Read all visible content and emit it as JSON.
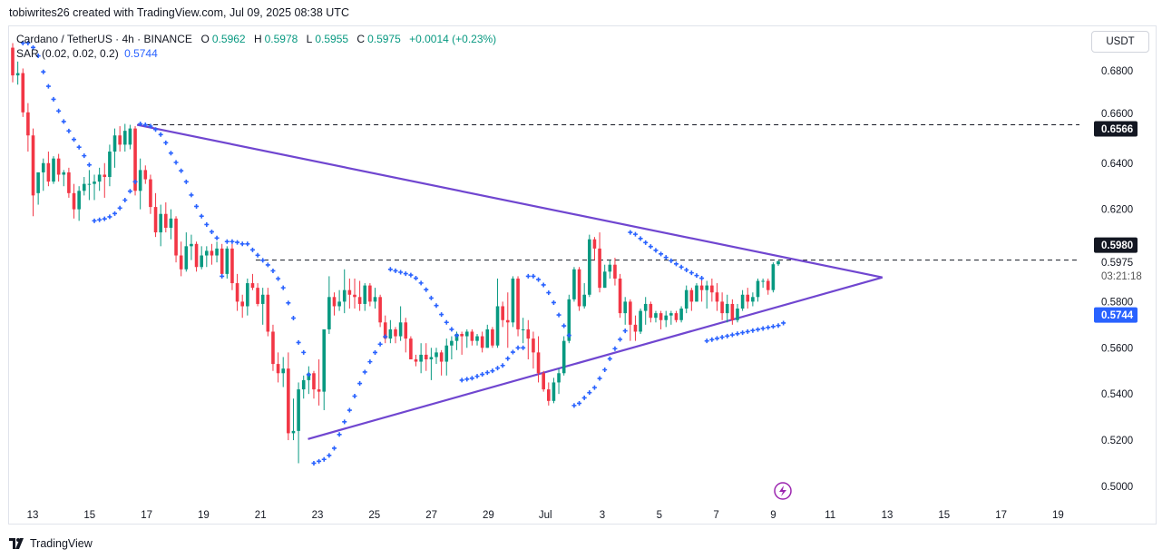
{
  "credit": "tobiwrites26 created with TradingView.com, Jul 09, 2025 08:38 UTC",
  "legend": {
    "symbol": "Cardano / TetherUS · 4h · BINANCE",
    "o_label": "O",
    "o": "0.5962",
    "h_label": "H",
    "h": "0.5978",
    "l_label": "L",
    "l": "0.5955",
    "c_label": "C",
    "c": "0.5975",
    "change": "+0.0014 (+0.23%)",
    "indicator": "SAR (0.02, 0.02, 0.2)",
    "indicator_value": "0.5744"
  },
  "currency_button": "USDT",
  "footer_logo": "TradingView",
  "colors": {
    "up": "#089981",
    "down": "#F23645",
    "sar": "#2962FF",
    "trendline": "#7046D0",
    "price_label_bg": "#131722",
    "sar_label_bg": "#2962FF",
    "alert_icon": "#9C27B0"
  },
  "icons": {
    "alert": "lightning-icon",
    "logo": "tradingview-logo-icon"
  },
  "chart_data": {
    "type": "candlestick",
    "title": "Cardano / TetherUS · 4h · BINANCE",
    "ylim": [
      0.493,
      0.695
    ],
    "grid": false,
    "x_ticks": [
      "13",
      "15",
      "17",
      "19",
      "21",
      "23",
      "25",
      "27",
      "29",
      "Jul",
      "3",
      "5",
      "7",
      "9",
      "11",
      "13",
      "15",
      "17",
      "19"
    ],
    "y_ticks": [
      "0.6800",
      "0.6600",
      "0.6400",
      "0.6200",
      "0.5800",
      "0.5600",
      "0.5400",
      "0.5200",
      "0.5000"
    ],
    "price_markers": [
      {
        "label": "0.6566",
        "value": 0.6566,
        "style": "dark"
      },
      {
        "label": "0.5980",
        "value": 0.598,
        "style": "dark"
      },
      {
        "label": "0.5975",
        "value": 0.5975,
        "style": "plain",
        "countdown": "03:21:18"
      },
      {
        "label": "0.5744",
        "value": 0.5744,
        "style": "sar"
      }
    ],
    "sar_params": [
      0.02,
      0.02,
      0.2
    ],
    "trendlines": [
      {
        "from": {
          "date": "2025-06-16 16:00",
          "price": 0.6566
        },
        "to": {
          "date": "2025-07-12 20:00",
          "price": 0.5905
        }
      },
      {
        "from": {
          "date": "2025-06-22 16:00",
          "price": 0.5205
        },
        "to": {
          "date": "2025-07-12 20:00",
          "price": 0.5905
        }
      }
    ],
    "horizontal_lines": [
      {
        "from_date": "2025-06-16 16:00",
        "price": 0.6566
      },
      {
        "from_date": "2025-06-20 20:00",
        "price": 0.598
      }
    ],
    "candles_ohlc": [
      [
        0.69,
        0.692,
        0.675,
        0.678
      ],
      [
        0.678,
        0.684,
        0.674,
        0.679
      ],
      [
        0.679,
        0.681,
        0.66,
        0.662
      ],
      [
        0.662,
        0.666,
        0.645,
        0.652
      ],
      [
        0.652,
        0.655,
        0.617,
        0.626
      ],
      [
        0.627,
        0.636,
        0.622,
        0.636
      ],
      [
        0.636,
        0.642,
        0.628,
        0.64
      ],
      [
        0.64,
        0.645,
        0.63,
        0.632
      ],
      [
        0.632,
        0.643,
        0.631,
        0.642
      ],
      [
        0.642,
        0.644,
        0.632,
        0.635
      ],
      [
        0.635,
        0.637,
        0.63,
        0.636
      ],
      [
        0.636,
        0.638,
        0.625,
        0.627
      ],
      [
        0.627,
        0.631,
        0.616,
        0.62
      ],
      [
        0.62,
        0.63,
        0.615,
        0.628
      ],
      [
        0.628,
        0.634,
        0.626,
        0.631
      ],
      [
        0.631,
        0.637,
        0.624,
        0.631
      ],
      [
        0.631,
        0.635,
        0.624,
        0.632
      ],
      [
        0.632,
        0.638,
        0.628,
        0.635
      ],
      [
        0.635,
        0.64,
        0.625,
        0.634
      ],
      [
        0.634,
        0.648,
        0.63,
        0.645
      ],
      [
        0.645,
        0.655,
        0.638,
        0.652
      ],
      [
        0.652,
        0.656,
        0.645,
        0.648
      ],
      [
        0.648,
        0.657,
        0.645,
        0.654
      ],
      [
        0.648,
        0.6566,
        0.646,
        0.655
      ],
      [
        0.655,
        0.656,
        0.626,
        0.628
      ],
      [
        0.628,
        0.642,
        0.62,
        0.637
      ],
      [
        0.637,
        0.639,
        0.631,
        0.633
      ],
      [
        0.633,
        0.635,
        0.618,
        0.621
      ],
      [
        0.621,
        0.627,
        0.608,
        0.61
      ],
      [
        0.61,
        0.622,
        0.604,
        0.618
      ],
      [
        0.618,
        0.623,
        0.61,
        0.612
      ],
      [
        0.612,
        0.62,
        0.607,
        0.616
      ],
      [
        0.616,
        0.617,
        0.597,
        0.6
      ],
      [
        0.6,
        0.606,
        0.591,
        0.594
      ],
      [
        0.594,
        0.61,
        0.593,
        0.604
      ],
      [
        0.604,
        0.609,
        0.598,
        0.605
      ],
      [
        0.605,
        0.606,
        0.593,
        0.595
      ],
      [
        0.595,
        0.604,
        0.594,
        0.6
      ],
      [
        0.6,
        0.604,
        0.595,
        0.602
      ],
      [
        0.602,
        0.605,
        0.596,
        0.6
      ],
      [
        0.6,
        0.606,
        0.597,
        0.603
      ],
      [
        0.603,
        0.605,
        0.59,
        0.592
      ],
      [
        0.592,
        0.604,
        0.59,
        0.603
      ],
      [
        0.603,
        0.605,
        0.585,
        0.588
      ],
      [
        0.588,
        0.592,
        0.576,
        0.58
      ],
      [
        0.58,
        0.583,
        0.573,
        0.578
      ],
      [
        0.578,
        0.59,
        0.574,
        0.588
      ],
      [
        0.588,
        0.592,
        0.585,
        0.586
      ],
      [
        0.586,
        0.588,
        0.578,
        0.579
      ],
      [
        0.579,
        0.586,
        0.57,
        0.583
      ],
      [
        0.583,
        0.586,
        0.565,
        0.567
      ],
      [
        0.567,
        0.57,
        0.55,
        0.553
      ],
      [
        0.553,
        0.558,
        0.545,
        0.549
      ],
      [
        0.549,
        0.556,
        0.543,
        0.551
      ],
      [
        0.551,
        0.558,
        0.52,
        0.523
      ],
      [
        0.523,
        0.538,
        0.52,
        0.524
      ],
      [
        0.524,
        0.545,
        0.51,
        0.542
      ],
      [
        0.542,
        0.548,
        0.538,
        0.546
      ],
      [
        0.546,
        0.552,
        0.54,
        0.549
      ],
      [
        0.549,
        0.55,
        0.538,
        0.542
      ],
      [
        0.542,
        0.555,
        0.535,
        0.541
      ],
      [
        0.541,
        0.565,
        0.533,
        0.568
      ],
      [
        0.568,
        0.591,
        0.566,
        0.582
      ],
      [
        0.582,
        0.584,
        0.574,
        0.578
      ],
      [
        0.578,
        0.585,
        0.576,
        0.58
      ],
      [
        0.58,
        0.594,
        0.575,
        0.585
      ],
      [
        0.585,
        0.59,
        0.577,
        0.583
      ],
      [
        0.583,
        0.59,
        0.577,
        0.582
      ],
      [
        0.582,
        0.589,
        0.576,
        0.579
      ],
      [
        0.579,
        0.588,
        0.576,
        0.587
      ],
      [
        0.587,
        0.588,
        0.578,
        0.58
      ],
      [
        0.58,
        0.586,
        0.577,
        0.582
      ],
      [
        0.582,
        0.583,
        0.569,
        0.571
      ],
      [
        0.571,
        0.574,
        0.562,
        0.564
      ],
      [
        0.564,
        0.572,
        0.562,
        0.568
      ],
      [
        0.568,
        0.569,
        0.562,
        0.565
      ],
      [
        0.565,
        0.578,
        0.563,
        0.571
      ],
      [
        0.571,
        0.573,
        0.558,
        0.564
      ],
      [
        0.564,
        0.565,
        0.555,
        0.555
      ],
      [
        0.555,
        0.557,
        0.552,
        0.554
      ],
      [
        0.554,
        0.562,
        0.549,
        0.557
      ],
      [
        0.557,
        0.562,
        0.55,
        0.555
      ],
      [
        0.555,
        0.56,
        0.546,
        0.556
      ],
      [
        0.556,
        0.56,
        0.553,
        0.558
      ],
      [
        0.558,
        0.559,
        0.548,
        0.554
      ],
      [
        0.554,
        0.564,
        0.548,
        0.561
      ],
      [
        0.561,
        0.565,
        0.555,
        0.563
      ],
      [
        0.563,
        0.567,
        0.559,
        0.566
      ],
      [
        0.566,
        0.567,
        0.557,
        0.565
      ],
      [
        0.565,
        0.568,
        0.56,
        0.567
      ],
      [
        0.567,
        0.568,
        0.561,
        0.563
      ],
      [
        0.563,
        0.566,
        0.561,
        0.565
      ],
      [
        0.565,
        0.567,
        0.558,
        0.56
      ],
      [
        0.56,
        0.57,
        0.56,
        0.568
      ],
      [
        0.568,
        0.569,
        0.56,
        0.561
      ],
      [
        0.561,
        0.59,
        0.56,
        0.578
      ],
      [
        0.578,
        0.58,
        0.569,
        0.572
      ],
      [
        0.572,
        0.584,
        0.56,
        0.571
      ],
      [
        0.571,
        0.591,
        0.569,
        0.59
      ],
      [
        0.59,
        0.591,
        0.565,
        0.568
      ],
      [
        0.568,
        0.573,
        0.562,
        0.568
      ],
      [
        0.568,
        0.572,
        0.555,
        0.564
      ],
      [
        0.564,
        0.567,
        0.551,
        0.558
      ],
      [
        0.558,
        0.565,
        0.545,
        0.549
      ],
      [
        0.549,
        0.55,
        0.541,
        0.542
      ],
      [
        0.542,
        0.545,
        0.535,
        0.537
      ],
      [
        0.537,
        0.547,
        0.536,
        0.545
      ],
      [
        0.545,
        0.551,
        0.54,
        0.549
      ],
      [
        0.549,
        0.565,
        0.548,
        0.563
      ],
      [
        0.563,
        0.583,
        0.562,
        0.581
      ],
      [
        0.581,
        0.595,
        0.58,
        0.594
      ],
      [
        0.594,
        0.595,
        0.576,
        0.578
      ],
      [
        0.578,
        0.588,
        0.577,
        0.583
      ],
      [
        0.583,
        0.609,
        0.582,
        0.607
      ],
      [
        0.607,
        0.608,
        0.598,
        0.603
      ],
      [
        0.603,
        0.61,
        0.584,
        0.586
      ],
      [
        0.586,
        0.596,
        0.586,
        0.593
      ],
      [
        0.593,
        0.598,
        0.59,
        0.596
      ],
      [
        0.596,
        0.599,
        0.587,
        0.59
      ],
      [
        0.59,
        0.592,
        0.573,
        0.575
      ],
      [
        0.575,
        0.582,
        0.57,
        0.58
      ],
      [
        0.58,
        0.581,
        0.563,
        0.57
      ],
      [
        0.57,
        0.574,
        0.563,
        0.567
      ],
      [
        0.567,
        0.577,
        0.566,
        0.576
      ],
      [
        0.576,
        0.582,
        0.57,
        0.579
      ],
      [
        0.579,
        0.58,
        0.571,
        0.573
      ],
      [
        0.573,
        0.576,
        0.571,
        0.575
      ],
      [
        0.575,
        0.576,
        0.568,
        0.572
      ],
      [
        0.572,
        0.576,
        0.569,
        0.574
      ],
      [
        0.574,
        0.576,
        0.57,
        0.575
      ],
      [
        0.575,
        0.576,
        0.571,
        0.572
      ],
      [
        0.572,
        0.578,
        0.571,
        0.577
      ],
      [
        0.577,
        0.587,
        0.575,
        0.585
      ],
      [
        0.585,
        0.586,
        0.576,
        0.58
      ],
      [
        0.58,
        0.588,
        0.58,
        0.587
      ],
      [
        0.587,
        0.59,
        0.58,
        0.585
      ],
      [
        0.585,
        0.589,
        0.577,
        0.587
      ],
      [
        0.587,
        0.59,
        0.58,
        0.584
      ],
      [
        0.584,
        0.588,
        0.576,
        0.58
      ],
      [
        0.58,
        0.584,
        0.572,
        0.575
      ],
      [
        0.575,
        0.583,
        0.571,
        0.579
      ],
      [
        0.579,
        0.581,
        0.57,
        0.572
      ],
      [
        0.572,
        0.579,
        0.571,
        0.577
      ],
      [
        0.577,
        0.585,
        0.576,
        0.583
      ],
      [
        0.583,
        0.586,
        0.577,
        0.58
      ],
      [
        0.58,
        0.584,
        0.578,
        0.582
      ],
      [
        0.582,
        0.59,
        0.58,
        0.589
      ],
      [
        0.589,
        0.59,
        0.586,
        0.589
      ],
      [
        0.589,
        0.59,
        0.583,
        0.585
      ],
      [
        0.585,
        0.597,
        0.584,
        0.5962
      ],
      [
        0.5962,
        0.5978,
        0.5955,
        0.5975
      ]
    ]
  }
}
